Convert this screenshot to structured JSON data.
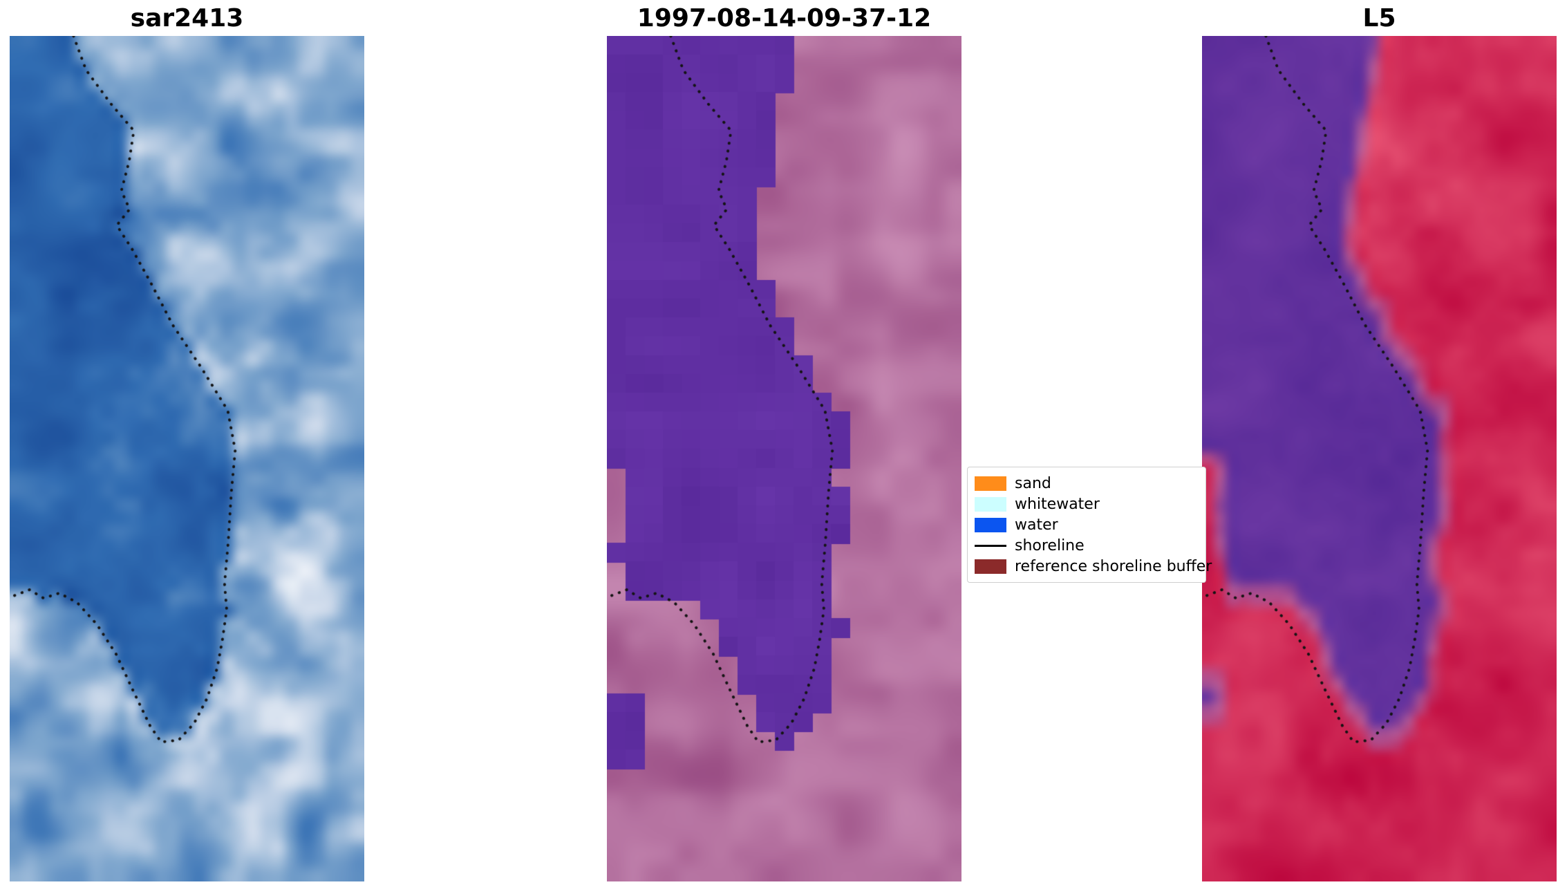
{
  "figure": {
    "background": "#ffffff",
    "panels": [
      {
        "id": "sar",
        "title": "sar2413"
      },
      {
        "id": "classified",
        "title": "1997-08-14-09-37-12"
      },
      {
        "id": "l5",
        "title": "L5"
      }
    ],
    "legend": {
      "entries": [
        {
          "label": "sand",
          "type": "patch",
          "color": "#ff8c1a"
        },
        {
          "label": "whitewater",
          "type": "patch",
          "color": "#ccfeff"
        },
        {
          "label": "water",
          "type": "patch",
          "color": "#0b55f0"
        },
        {
          "label": "shoreline",
          "type": "line",
          "color": "#000000"
        },
        {
          "label": "reference shoreline buffer",
          "type": "patch",
          "color": "#8b2a2a"
        }
      ]
    }
  },
  "chart_data": {
    "type": "heatmap",
    "layout": "three vertical image panels side by side sharing one dotted reference-shoreline overlay; legend box sits between panel 2 and panel 3",
    "panels": [
      {
        "title": "sar2413",
        "kind": "SAR backscatter image, blue-to-white speckle; water darker blue left of shoreline, brighter blotches to the right",
        "palette_stops": [
          "#164694",
          "#306cb2",
          "#7da5cd",
          "#d0dcec",
          "#ffffff"
        ],
        "palette_positions": [
          0,
          0.35,
          0.62,
          0.82,
          1
        ]
      },
      {
        "title": "1997-08-14-09-37-12",
        "kind": "pixel classification: flat purple water class over mauve/pink false-color background, blocky cell edges",
        "water_color": "#5a2a9c",
        "water_color_2": "#6634a8",
        "background_dark": "#964880",
        "background_light": "#d096bc"
      },
      {
        "title": "L5",
        "kind": "Landsat 5 false-color composite: purple water region surrounded by crimson land, pinkish halo along the boundary",
        "land_dark": "#ba023a",
        "land_light": "#e85676",
        "water_dark": "#522694",
        "water_light": "#743ea8",
        "halo": "#cd7daa"
      }
    ],
    "shoreline_path_normalized": [
      [
        0.18,
        0.0
      ],
      [
        0.215,
        0.04
      ],
      [
        0.285,
        0.08
      ],
      [
        0.35,
        0.112
      ],
      [
        0.337,
        0.148
      ],
      [
        0.315,
        0.183
      ],
      [
        0.338,
        0.205
      ],
      [
        0.302,
        0.224
      ],
      [
        0.345,
        0.252
      ],
      [
        0.398,
        0.292
      ],
      [
        0.46,
        0.342
      ],
      [
        0.54,
        0.392
      ],
      [
        0.615,
        0.443
      ],
      [
        0.636,
        0.49
      ],
      [
        0.625,
        0.54
      ],
      [
        0.616,
        0.6
      ],
      [
        0.606,
        0.648
      ],
      [
        0.612,
        0.678
      ],
      [
        0.6,
        0.714
      ],
      [
        0.585,
        0.748
      ],
      [
        0.556,
        0.784
      ],
      [
        0.52,
        0.813
      ],
      [
        0.476,
        0.833
      ],
      [
        0.427,
        0.835
      ],
      [
        0.396,
        0.816
      ],
      [
        0.35,
        0.776
      ],
      [
        0.3,
        0.731
      ],
      [
        0.246,
        0.696
      ],
      [
        0.19,
        0.67
      ],
      [
        0.14,
        0.659
      ],
      [
        0.096,
        0.665
      ],
      [
        0.056,
        0.655
      ],
      [
        0.0,
        0.664
      ]
    ],
    "legend_entries": [
      "sand",
      "whitewater",
      "water",
      "shoreline",
      "reference shoreline buffer"
    ]
  }
}
